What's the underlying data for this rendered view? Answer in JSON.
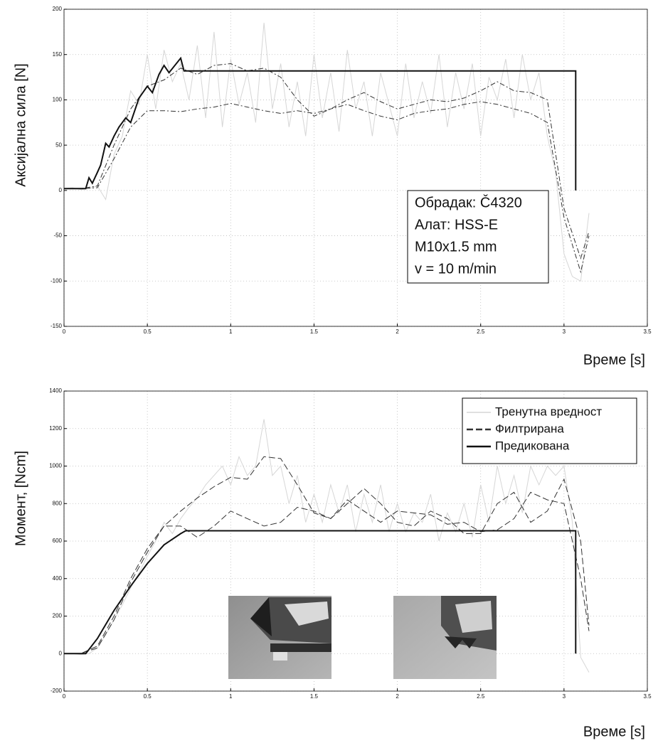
{
  "chart_data": [
    {
      "type": "line",
      "ylabel": "Аксијална сила [N]",
      "xlabel": "Време [s]",
      "xlim": [
        0,
        3.5
      ],
      "xticks": [
        0,
        0.5,
        1,
        1.5,
        2,
        2.5,
        3,
        3.5
      ],
      "ylim": [
        -150,
        200
      ],
      "yticks": [
        -150,
        -100,
        -50,
        0,
        50,
        100,
        150,
        200
      ],
      "grid": true,
      "annotation": [
        "Обрадак: Č4320",
        "Алат: HSS-E",
        "M10x1.5 mm",
        "v = 10 m/min"
      ],
      "series": [
        {
          "color": "#d6d6d6",
          "line_style": "solid",
          "x": [
            0,
            0.05,
            0.1,
            0.15,
            0.2,
            0.25,
            0.3,
            0.35,
            0.4,
            0.45,
            0.5,
            0.55,
            0.6,
            0.65,
            0.7,
            0.75,
            0.8,
            0.85,
            0.9,
            0.95,
            1,
            1.05,
            1.1,
            1.15,
            1.2,
            1.25,
            1.3,
            1.35,
            1.4,
            1.45,
            1.5,
            1.55,
            1.6,
            1.65,
            1.7,
            1.75,
            1.8,
            1.85,
            1.9,
            1.95,
            2,
            2.05,
            2.1,
            2.15,
            2.2,
            2.25,
            2.3,
            2.35,
            2.4,
            2.45,
            2.5,
            2.55,
            2.6,
            2.65,
            2.7,
            2.75,
            2.8,
            2.85,
            2.9,
            2.95,
            3,
            3.05,
            3.1,
            3.15
          ],
          "values": [
            2,
            3,
            1,
            2,
            5,
            -10,
            40,
            60,
            110,
            95,
            150,
            90,
            155,
            120,
            140,
            100,
            160,
            80,
            175,
            70,
            145,
            95,
            130,
            75,
            185,
            90,
            140,
            70,
            120,
            60,
            150,
            80,
            130,
            65,
            155,
            90,
            120,
            60,
            130,
            95,
            60,
            140,
            80,
            120,
            85,
            150,
            70,
            130,
            90,
            140,
            60,
            125,
            100,
            145,
            80,
            150,
            100,
            130,
            60,
            20,
            -70,
            -95,
            -100,
            -25
          ]
        },
        {
          "color": "#333333",
          "line_style": "dashdot",
          "x": [
            0,
            0.1,
            0.2,
            0.3,
            0.4,
            0.5,
            0.6,
            0.7,
            0.8,
            0.9,
            1,
            1.1,
            1.2,
            1.3,
            1.4,
            1.5,
            1.6,
            1.7,
            1.8,
            1.9,
            2,
            2.1,
            2.2,
            2.3,
            2.4,
            2.5,
            2.6,
            2.7,
            2.8,
            2.9,
            3,
            3.1,
            3.15
          ],
          "values": [
            2,
            2,
            5,
            50,
            90,
            115,
            122,
            135,
            128,
            138,
            140,
            132,
            135,
            125,
            100,
            82,
            90,
            100,
            108,
            98,
            90,
            95,
            100,
            98,
            102,
            110,
            120,
            110,
            108,
            100,
            -20,
            -75,
            -45
          ]
        },
        {
          "color": "#333333",
          "line_style": "dashdot",
          "x": [
            0,
            0.1,
            0.2,
            0.3,
            0.4,
            0.5,
            0.6,
            0.7,
            0.8,
            0.9,
            1,
            1.1,
            1.2,
            1.3,
            1.4,
            1.5,
            1.6,
            1.7,
            1.8,
            1.9,
            2,
            2.1,
            2.2,
            2.3,
            2.4,
            2.5,
            2.6,
            2.7,
            2.8,
            2.9,
            3,
            3.1,
            3.15
          ],
          "values": [
            2,
            2,
            3,
            35,
            70,
            88,
            88,
            87,
            90,
            92,
            96,
            92,
            88,
            85,
            88,
            85,
            90,
            95,
            88,
            82,
            78,
            85,
            88,
            90,
            95,
            98,
            95,
            90,
            85,
            75,
            -30,
            -90,
            -50
          ]
        },
        {
          "color": "#111111",
          "line_style": "solid",
          "x": [
            0,
            0.13,
            0.15,
            0.17,
            0.2,
            0.22,
            0.25,
            0.27,
            0.3,
            0.33,
            0.37,
            0.4,
            0.45,
            0.5,
            0.53,
            0.57,
            0.6,
            0.63,
            0.7,
            0.72,
            3.07,
            3.07
          ],
          "values": [
            2,
            2,
            14,
            8,
            20,
            28,
            52,
            48,
            60,
            70,
            80,
            75,
            102,
            115,
            108,
            128,
            138,
            130,
            146,
            132,
            132,
            0
          ]
        }
      ]
    },
    {
      "type": "line",
      "ylabel": "Момент, [Ncm]",
      "xlabel": "Време [s]",
      "xlim": [
        0,
        3.5
      ],
      "xticks": [
        0,
        0.5,
        1,
        1.5,
        2,
        2.5,
        3,
        3.5
      ],
      "ylim": [
        -200,
        1400
      ],
      "yticks": [
        -200,
        0,
        200,
        400,
        600,
        800,
        1000,
        1200,
        1400
      ],
      "grid": true,
      "legend": "upper right",
      "series": [
        {
          "name": "Тренутна вредност",
          "color": "#d6d6d6",
          "line_style": "solid",
          "x": [
            0,
            0.05,
            0.1,
            0.15,
            0.2,
            0.25,
            0.3,
            0.35,
            0.4,
            0.45,
            0.5,
            0.55,
            0.6,
            0.65,
            0.7,
            0.75,
            0.8,
            0.85,
            0.9,
            0.95,
            1,
            1.05,
            1.1,
            1.15,
            1.2,
            1.25,
            1.3,
            1.35,
            1.4,
            1.45,
            1.5,
            1.55,
            1.6,
            1.65,
            1.7,
            1.75,
            1.8,
            1.85,
            1.9,
            1.95,
            2,
            2.05,
            2.1,
            2.15,
            2.2,
            2.25,
            2.3,
            2.35,
            2.4,
            2.45,
            2.5,
            2.55,
            2.6,
            2.65,
            2.7,
            2.75,
            2.8,
            2.85,
            2.9,
            2.95,
            3,
            3.05,
            3.1,
            3.15
          ],
          "values": [
            0,
            0,
            -5,
            0,
            30,
            100,
            180,
            260,
            350,
            430,
            520,
            600,
            700,
            640,
            720,
            780,
            830,
            900,
            950,
            1000,
            900,
            1050,
            950,
            1000,
            1250,
            950,
            1000,
            800,
            950,
            700,
            850,
            700,
            900,
            750,
            900,
            650,
            850,
            700,
            900,
            650,
            800,
            650,
            750,
            700,
            850,
            600,
            750,
            650,
            800,
            620,
            900,
            700,
            1000,
            800,
            950,
            750,
            1000,
            900,
            1000,
            950,
            1000,
            700,
            -20,
            -100
          ]
        },
        {
          "name": "Филтрирана",
          "color": "#333333",
          "line_style": "dashed",
          "x": [
            0,
            0.1,
            0.2,
            0.3,
            0.4,
            0.5,
            0.6,
            0.7,
            0.8,
            0.9,
            1,
            1.1,
            1.2,
            1.3,
            1.4,
            1.5,
            1.6,
            1.7,
            1.8,
            1.9,
            2,
            2.1,
            2.2,
            2.3,
            2.4,
            2.5,
            2.6,
            2.7,
            2.8,
            2.9,
            3,
            3.1,
            3.15
          ],
          "values": [
            0,
            0,
            40,
            200,
            400,
            560,
            680,
            760,
            830,
            890,
            940,
            930,
            1050,
            1040,
            900,
            750,
            720,
            800,
            880,
            800,
            700,
            680,
            760,
            720,
            640,
            640,
            800,
            860,
            700,
            760,
            930,
            600,
            150
          ]
        },
        {
          "color": "#333333",
          "line_style": "dashed",
          "x": [
            0,
            0.1,
            0.2,
            0.3,
            0.4,
            0.5,
            0.6,
            0.7,
            0.8,
            0.9,
            1,
            1.1,
            1.2,
            1.3,
            1.4,
            1.5,
            1.6,
            1.7,
            1.8,
            1.9,
            2,
            2.1,
            2.2,
            2.3,
            2.4,
            2.5,
            2.6,
            2.7,
            2.8,
            2.9,
            3,
            3.1,
            3.15
          ],
          "values": [
            0,
            0,
            30,
            180,
            380,
            540,
            680,
            680,
            620,
            680,
            760,
            720,
            680,
            700,
            780,
            760,
            720,
            820,
            760,
            700,
            760,
            750,
            740,
            690,
            700,
            650,
            660,
            720,
            860,
            820,
            800,
            400,
            120
          ]
        },
        {
          "name": "Предикована",
          "color": "#111111",
          "line_style": "solid",
          "x": [
            0,
            0.13,
            0.2,
            0.3,
            0.4,
            0.5,
            0.6,
            0.7,
            0.73,
            3.07,
            3.07
          ],
          "values": [
            0,
            0,
            80,
            230,
            360,
            480,
            580,
            640,
            655,
            655,
            0
          ]
        }
      ]
    }
  ]
}
